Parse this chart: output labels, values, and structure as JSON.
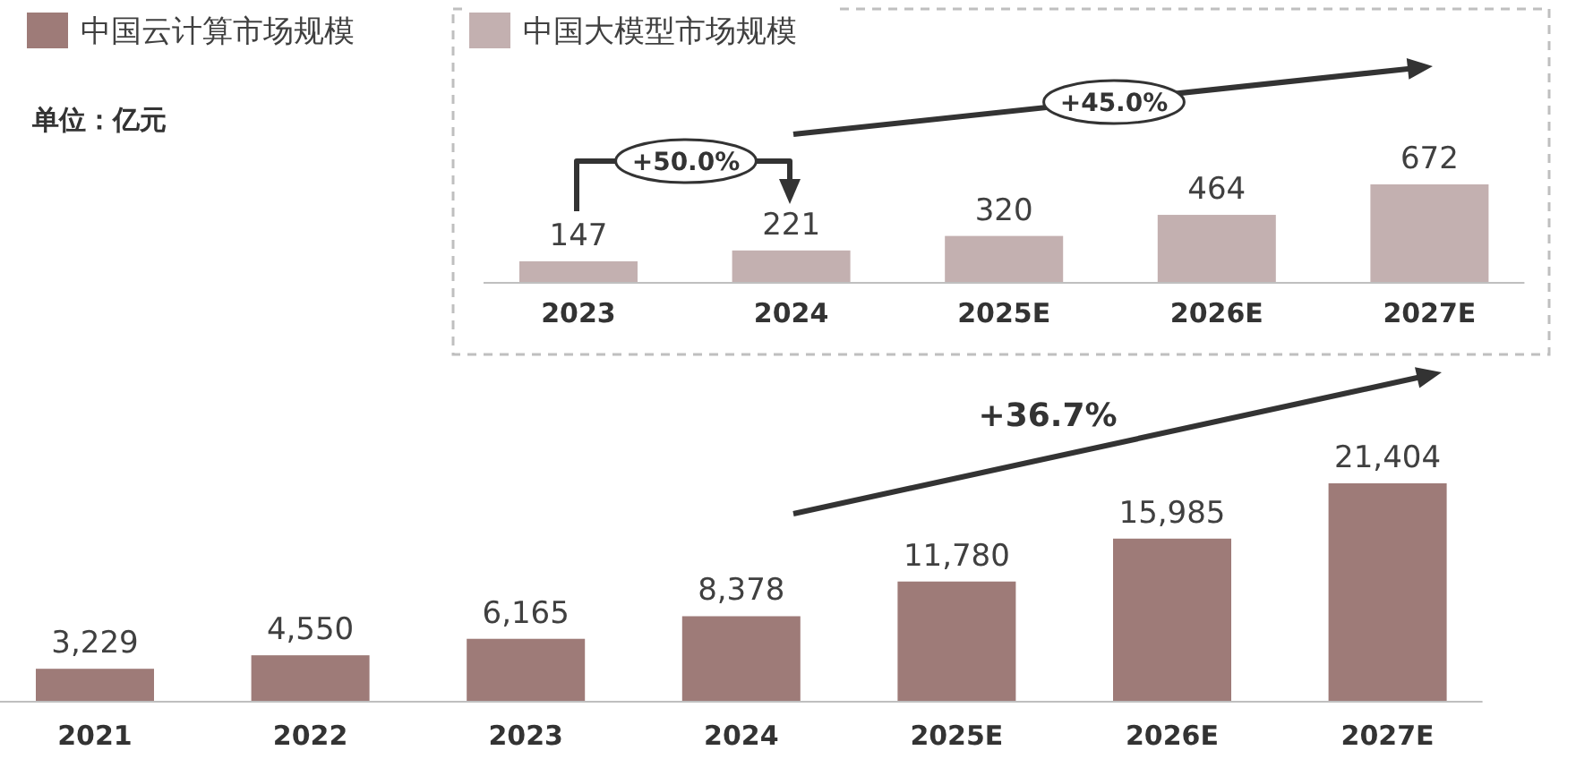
{
  "chart_data": [
    {
      "type": "bar",
      "categories": [
        "2021",
        "2022",
        "2023",
        "2024",
        "2025E",
        "2026E",
        "2027E"
      ],
      "series": [
        {
          "name": "中国云计算市场规模",
          "color": "#9e7b78",
          "values": [
            3229,
            4550,
            6165,
            8378,
            11780,
            15985,
            21404
          ],
          "value_labels": [
            "3,229",
            "4,550",
            "6,165",
            "8,378",
            "11,780",
            "15,985",
            "21,404"
          ]
        }
      ],
      "legend": "top left",
      "annotations": [
        "单位：亿元",
        "+36.7%"
      ]
    },
    {
      "type": "bar",
      "categories": [
        "2023",
        "2024",
        "2025E",
        "2026E",
        "2027E"
      ],
      "series": [
        {
          "name": "中国大模型市场规模",
          "color": "#c3b0b0",
          "values": [
            147,
            221,
            320,
            464,
            672
          ]
        }
      ],
      "data_labels": true,
      "legend": "top left",
      "annotations": [
        "+50.0%",
        "+45.0%"
      ]
    }
  ]
}
